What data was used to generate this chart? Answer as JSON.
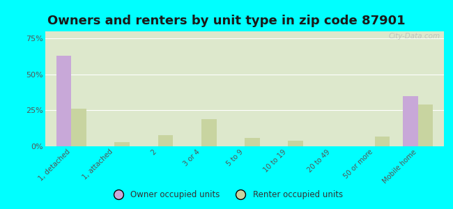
{
  "title": "Owners and renters by unit type in zip code 87901",
  "categories": [
    "1, detached",
    "1, attached",
    "2",
    "3 or 4",
    "5 to 9",
    "10 to 19",
    "20 to 49",
    "50 or more",
    "Mobile home"
  ],
  "owner_values": [
    63,
    0,
    0,
    0,
    0,
    0,
    0,
    0,
    35
  ],
  "renter_values": [
    26,
    3,
    8,
    19,
    6,
    4,
    0,
    7,
    29
  ],
  "owner_color": "#c8a8d8",
  "renter_color": "#c8d4a0",
  "bg_outer": "#00ffff",
  "bg_plot_top": "#dde8cc",
  "yticks": [
    0,
    25,
    50,
    75
  ],
  "ytick_labels": [
    "0%",
    "25%",
    "50%",
    "75%"
  ],
  "ylim": [
    0,
    80
  ],
  "bar_width": 0.35,
  "title_fontsize": 13,
  "watermark": "City-Data.com"
}
